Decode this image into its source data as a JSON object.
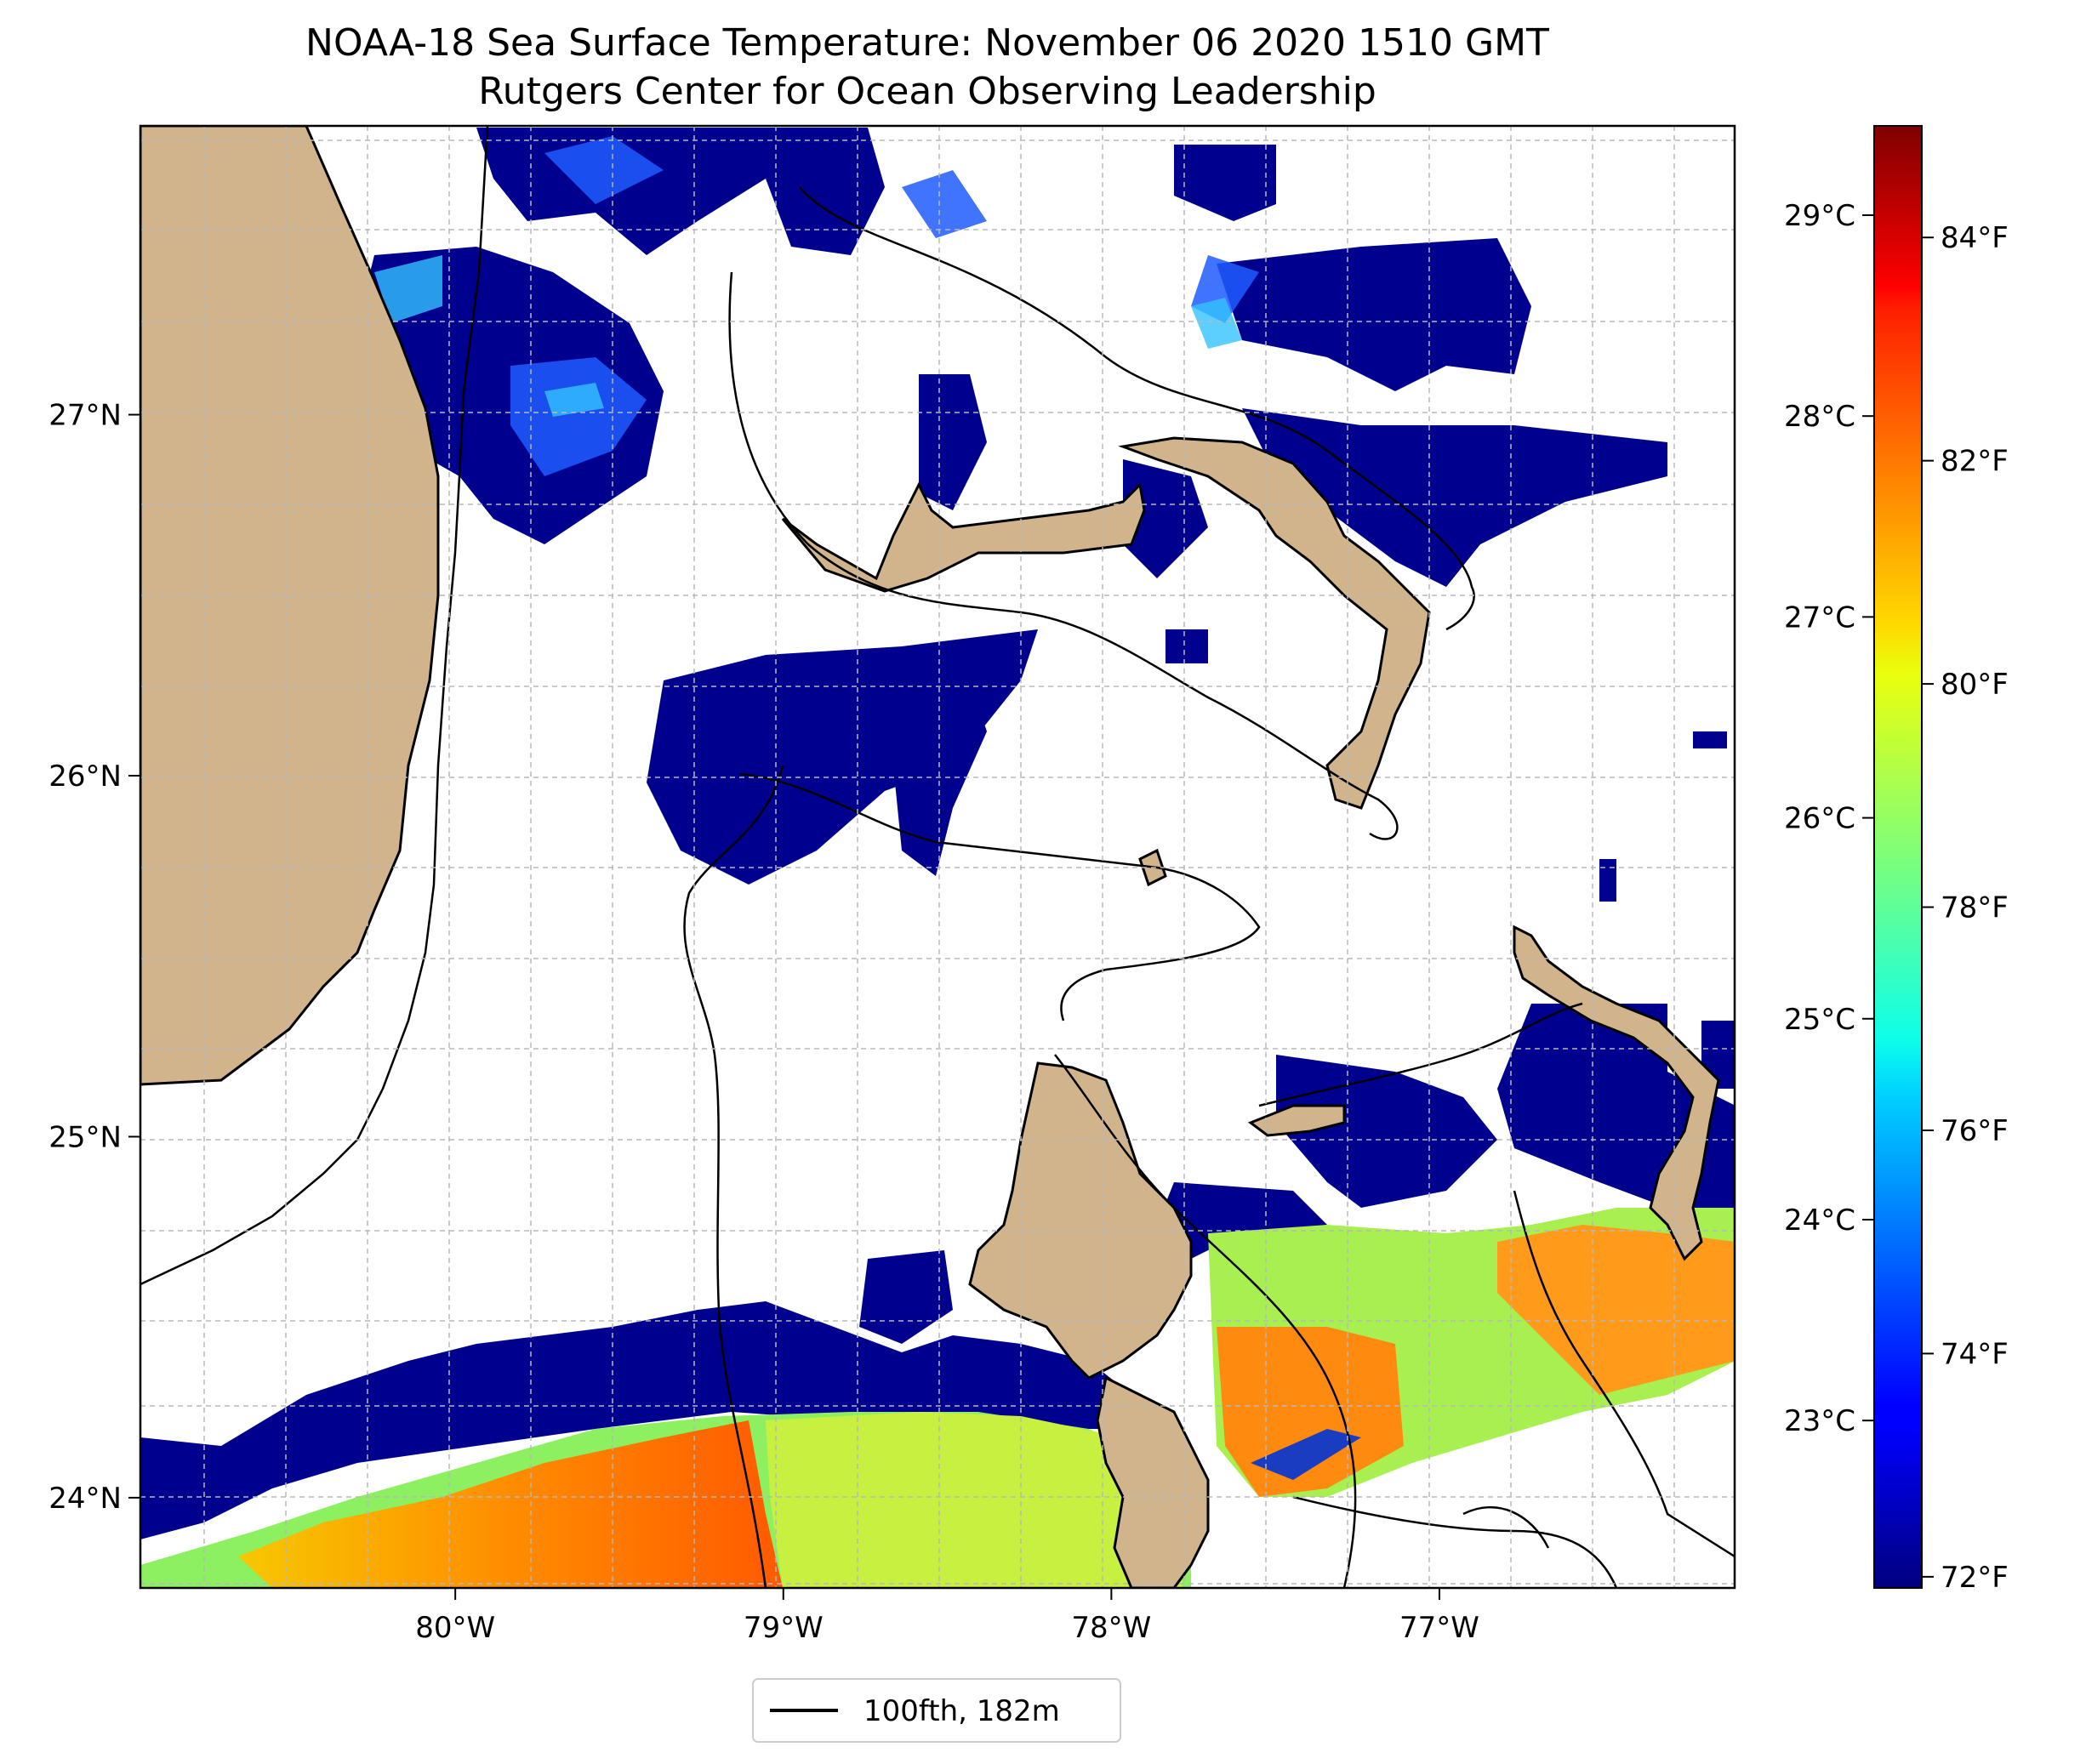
{
  "figure": {
    "title_line1": "NOAA-18 Sea Surface Temperature: November 06 2020 1510 GMT",
    "title_line2": "Rutgers Center for Ocean Observing Leadership"
  },
  "map": {
    "x_ticks": [
      {
        "value": -80,
        "label": "80°W"
      },
      {
        "value": -79,
        "label": "79°W"
      },
      {
        "value": -78,
        "label": "78°W"
      },
      {
        "value": -77,
        "label": "77°W"
      }
    ],
    "y_ticks": [
      {
        "value": 27,
        "label": "27°N"
      },
      {
        "value": 26,
        "label": "26°N"
      },
      {
        "value": 25,
        "label": "25°N"
      },
      {
        "value": 24,
        "label": "24°N"
      }
    ],
    "land_color": "#d2b48c",
    "grid": true,
    "grid_style": "dashed"
  },
  "legend": {
    "label": "100fth, 182m"
  },
  "colorbar": {
    "colormap": "jet",
    "celsius_ticks": [
      {
        "value": 29,
        "label": "29°C"
      },
      {
        "value": 28,
        "label": "28°C"
      },
      {
        "value": 27,
        "label": "27°C"
      },
      {
        "value": 26,
        "label": "26°C"
      },
      {
        "value": 25,
        "label": "25°C"
      },
      {
        "value": 24,
        "label": "24°C"
      },
      {
        "value": 23,
        "label": "23°C"
      }
    ],
    "fahrenheit_ticks": [
      {
        "value": 84,
        "label": "84°F"
      },
      {
        "value": 82,
        "label": "82°F"
      },
      {
        "value": 80,
        "label": "80°F"
      },
      {
        "value": 78,
        "label": "78°F"
      },
      {
        "value": 76,
        "label": "76°F"
      },
      {
        "value": 74,
        "label": "74°F"
      },
      {
        "value": 72,
        "label": "72°F"
      }
    ],
    "range_f": [
      71.9,
      85.0
    ]
  }
}
